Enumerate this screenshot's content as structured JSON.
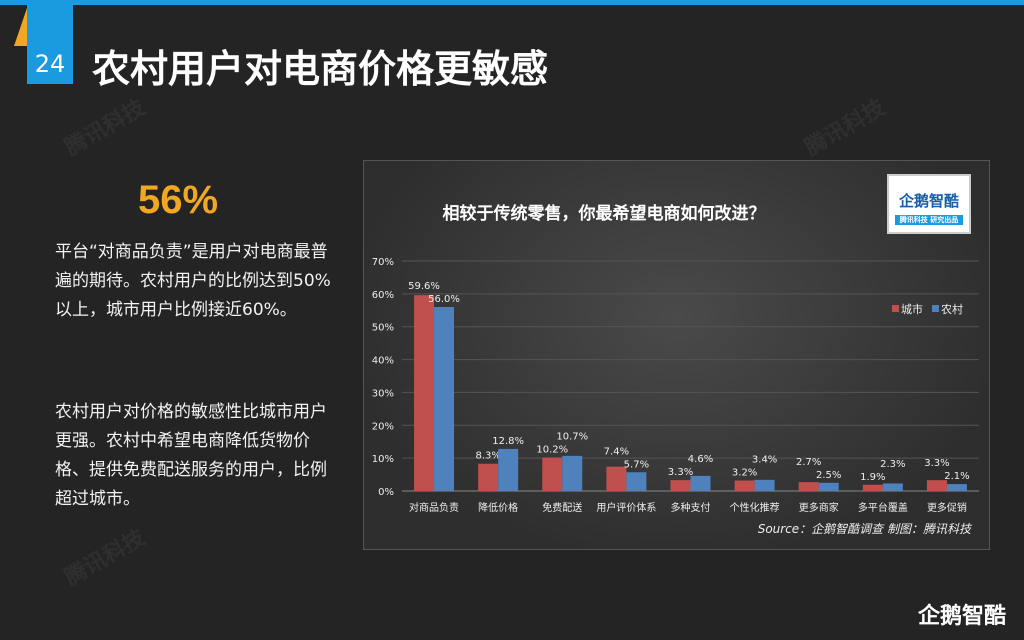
{
  "slide": {
    "number": "24",
    "title": "农村用户对电商价格更敏感",
    "highlight": "56%",
    "paragraph1": "平台“对商品负责”是用户对电商最普遍的期待。农村用户的比例达到50%以上，城市用户比例接近60%。",
    "paragraph2": "农村用户对价格的敏感性比城市用户更强。农村中希望电商降低货物价格、提供免费配送服务的用户，比例超过城市。",
    "brand": "企鹅智酷",
    "watermark": "腾讯科技"
  },
  "logo": {
    "name": "企鹅智酷",
    "tagline": "腾讯科技 研究出品"
  },
  "chart_data": {
    "type": "bar",
    "title": "相较于传统零售，你最希望电商如何改进？",
    "categories": [
      "对商品负责",
      "降低价格",
      "免费配送",
      "用户评价体系",
      "多种支付",
      "个性化推荐",
      "更多商家",
      "多平台覆盖",
      "更多促销"
    ],
    "series": [
      {
        "name": "城市",
        "color": "#c0504d",
        "values": [
          59.6,
          8.3,
          10.2,
          7.4,
          3.3,
          3.2,
          2.7,
          1.9,
          3.3
        ]
      },
      {
        "name": "农村",
        "color": "#4f81bd",
        "values": [
          56.0,
          12.8,
          10.7,
          5.7,
          4.6,
          3.4,
          2.5,
          2.3,
          2.1
        ]
      }
    ],
    "ylim": [
      0,
      70
    ],
    "yticks": [
      "0%",
      "10%",
      "20%",
      "30%",
      "40%",
      "50%",
      "60%",
      "70%"
    ],
    "grid": true,
    "legend": "top-right",
    "source": "Source：企鹅智酷调查  制图：腾讯科技"
  }
}
